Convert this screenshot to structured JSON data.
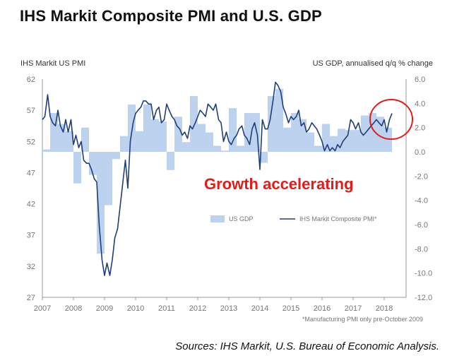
{
  "title": "IHS Markit Composite PMI and U.S. GDP",
  "source": "Sources: IHS Markit, U.S. Bureau of Economic Analysis.",
  "chart_data": {
    "type": "bar+line",
    "title": "IHS Markit Composite PMI and U.S. GDP",
    "left_axis_title": "IHS Markit US PMI",
    "right_axis_title": "US GDP, annualised q/q % change",
    "left_ylim": [
      27,
      62
    ],
    "left_ticks": [
      "62",
      "57",
      "52",
      "47",
      "42",
      "37",
      "32",
      "27"
    ],
    "right_ylim": [
      -12,
      6
    ],
    "right_ticks": [
      "6.0",
      "4.0",
      "2.0",
      "0.0",
      "-2.0",
      "-4.0",
      "-6.0",
      "-8.0",
      "-10.0",
      "-12.0"
    ],
    "x_ticks": [
      "2007",
      "2008",
      "2009",
      "2010",
      "2011",
      "2012",
      "2013",
      "2014",
      "2015",
      "2016",
      "2017",
      "2018"
    ],
    "annotation": "Growth accelerating",
    "footnote": "*Manufacturing PMI only pre-October 2009",
    "series": [
      {
        "name": "US GDP",
        "type": "bar",
        "axis": "right",
        "x": [
          2007.0,
          2007.25,
          2007.5,
          2007.75,
          2008.0,
          2008.25,
          2008.5,
          2008.75,
          2009.0,
          2009.25,
          2009.5,
          2009.75,
          2010.0,
          2010.25,
          2010.5,
          2010.75,
          2011.0,
          2011.25,
          2011.5,
          2011.75,
          2012.0,
          2012.25,
          2012.5,
          2012.75,
          2013.0,
          2013.25,
          2013.5,
          2013.75,
          2014.0,
          2014.25,
          2014.5,
          2014.75,
          2015.0,
          2015.25,
          2015.5,
          2015.75,
          2016.0,
          2016.25,
          2016.5,
          2016.75,
          2017.0,
          2017.25,
          2017.5,
          2017.75,
          2018.0
        ],
        "values": [
          0.2,
          3.2,
          2.3,
          1.7,
          -2.6,
          2.0,
          -1.9,
          -8.4,
          -4.4,
          -0.6,
          1.3,
          3.9,
          1.7,
          3.9,
          2.7,
          2.5,
          -1.5,
          2.9,
          0.8,
          4.6,
          2.3,
          1.6,
          0.5,
          0.1,
          3.6,
          0.5,
          3.2,
          3.2,
          -0.9,
          4.6,
          5.2,
          2.0,
          3.2,
          2.7,
          1.6,
          0.5,
          2.3,
          1.3,
          1.9,
          1.8,
          1.8,
          3.0,
          3.2,
          2.9,
          2.0
        ]
      },
      {
        "name": "IHS Markit Composite PMI*",
        "type": "line",
        "axis": "left",
        "x": [
          2007.0,
          2007.08,
          2007.17,
          2007.25,
          2007.33,
          2007.42,
          2007.5,
          2007.58,
          2007.67,
          2007.75,
          2007.83,
          2007.92,
          2008.0,
          2008.08,
          2008.17,
          2008.25,
          2008.33,
          2008.42,
          2008.5,
          2008.58,
          2008.67,
          2008.75,
          2008.83,
          2008.92,
          2009.0,
          2009.08,
          2009.17,
          2009.25,
          2009.33,
          2009.42,
          2009.5,
          2009.58,
          2009.67,
          2009.75,
          2009.83,
          2009.92,
          2010.0,
          2010.08,
          2010.17,
          2010.25,
          2010.33,
          2010.42,
          2010.5,
          2010.58,
          2010.67,
          2010.75,
          2010.83,
          2010.92,
          2011.0,
          2011.08,
          2011.17,
          2011.25,
          2011.33,
          2011.42,
          2011.5,
          2011.58,
          2011.67,
          2011.75,
          2011.83,
          2011.92,
          2012.0,
          2012.08,
          2012.17,
          2012.25,
          2012.33,
          2012.42,
          2012.5,
          2012.58,
          2012.67,
          2012.75,
          2012.83,
          2012.92,
          2013.0,
          2013.08,
          2013.17,
          2013.25,
          2013.33,
          2013.42,
          2013.5,
          2013.58,
          2013.67,
          2013.75,
          2013.83,
          2013.92,
          2014.0,
          2014.08,
          2014.17,
          2014.25,
          2014.33,
          2014.42,
          2014.5,
          2014.58,
          2014.67,
          2014.75,
          2014.83,
          2014.92,
          2015.0,
          2015.08,
          2015.17,
          2015.25,
          2015.33,
          2015.42,
          2015.5,
          2015.58,
          2015.67,
          2015.75,
          2015.83,
          2015.92,
          2016.0,
          2016.08,
          2016.17,
          2016.25,
          2016.33,
          2016.42,
          2016.5,
          2016.58,
          2016.67,
          2016.75,
          2016.83,
          2016.92,
          2017.0,
          2017.08,
          2017.17,
          2017.25,
          2017.33,
          2017.42,
          2017.5,
          2017.58,
          2017.67,
          2017.75,
          2017.83,
          2017.92,
          2018.0,
          2018.08,
          2018.17,
          2018.25
        ],
        "values": [
          55.5,
          56.0,
          59.5,
          56.0,
          55.0,
          54.5,
          57.0,
          54.5,
          53.5,
          55.5,
          53.5,
          55.5,
          51.5,
          53.0,
          51.0,
          52.0,
          49.0,
          48.5,
          48.5,
          47.5,
          46.0,
          45.5,
          38.5,
          33.0,
          30.5,
          32.5,
          30.5,
          33.0,
          36.5,
          38.0,
          41.5,
          45.0,
          49.0,
          44.5,
          52.0,
          55.0,
          56.5,
          57.0,
          57.5,
          58.5,
          58.5,
          58.0,
          58.0,
          55.5,
          57.0,
          57.5,
          55.0,
          55.5,
          58.0,
          57.0,
          56.0,
          55.5,
          54.5,
          54.0,
          53.0,
          53.5,
          52.5,
          54.5,
          54.0,
          55.0,
          56.0,
          57.0,
          56.5,
          56.0,
          58.0,
          57.5,
          57.0,
          58.0,
          55.5,
          55.0,
          52.0,
          53.5,
          52.0,
          51.5,
          52.5,
          53.0,
          54.0,
          54.5,
          53.0,
          52.5,
          51.5,
          54.0,
          55.0,
          53.0,
          47.5,
          55.5,
          54.0,
          54.0,
          55.5,
          58.5,
          61.5,
          61.0,
          60.0,
          57.5,
          56.5,
          55.0,
          56.0,
          55.5,
          56.0,
          57.0,
          54.5,
          55.0,
          53.5,
          54.0,
          55.0,
          54.5,
          54.0,
          53.0,
          52.0,
          50.5,
          51.5,
          50.5,
          51.0,
          50.5,
          51.5,
          51.0,
          52.0,
          52.5,
          53.0,
          55.5,
          55.0,
          54.0,
          55.0,
          53.5,
          53.0,
          53.5,
          54.0,
          54.5,
          55.0,
          55.5,
          55.0,
          54.5,
          55.5,
          53.5,
          55.5,
          56.5
        ]
      }
    ],
    "legend_position": "bottom-right"
  }
}
